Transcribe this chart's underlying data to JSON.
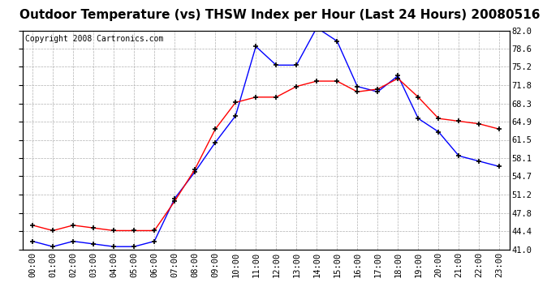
{
  "title": "Outdoor Temperature (vs) THSW Index per Hour (Last 24 Hours) 20080516",
  "copyright": "Copyright 2008 Cartronics.com",
  "hours": [
    "00:00",
    "01:00",
    "02:00",
    "03:00",
    "04:00",
    "05:00",
    "06:00",
    "07:00",
    "08:00",
    "09:00",
    "10:00",
    "11:00",
    "12:00",
    "13:00",
    "14:00",
    "15:00",
    "16:00",
    "17:00",
    "18:00",
    "19:00",
    "20:00",
    "21:00",
    "22:00",
    "23:00"
  ],
  "blue_temp": [
    42.5,
    41.5,
    42.5,
    42.0,
    41.5,
    41.5,
    42.5,
    50.5,
    55.5,
    61.0,
    66.0,
    79.0,
    75.5,
    75.5,
    82.5,
    80.0,
    71.5,
    70.5,
    73.5,
    65.5,
    63.0,
    58.5,
    57.5,
    56.5
  ],
  "red_thsw": [
    45.5,
    44.5,
    45.5,
    45.0,
    44.5,
    44.5,
    44.5,
    50.0,
    56.0,
    63.5,
    68.5,
    69.5,
    69.5,
    71.5,
    72.5,
    72.5,
    70.5,
    71.0,
    73.0,
    69.5,
    65.5,
    65.0,
    64.5,
    63.5
  ],
  "ylim": [
    41.0,
    82.0
  ],
  "yticks": [
    41.0,
    44.4,
    47.8,
    51.2,
    54.7,
    58.1,
    61.5,
    64.9,
    68.3,
    71.8,
    75.2,
    78.6,
    82.0
  ],
  "blue_color": "#0000ff",
  "red_color": "#ff0000",
  "bg_color": "#ffffff",
  "plot_bg_color": "#ffffff",
  "grid_color": "#b0b0b0",
  "title_fontsize": 11,
  "copyright_fontsize": 7,
  "axis_fontsize": 7.5
}
